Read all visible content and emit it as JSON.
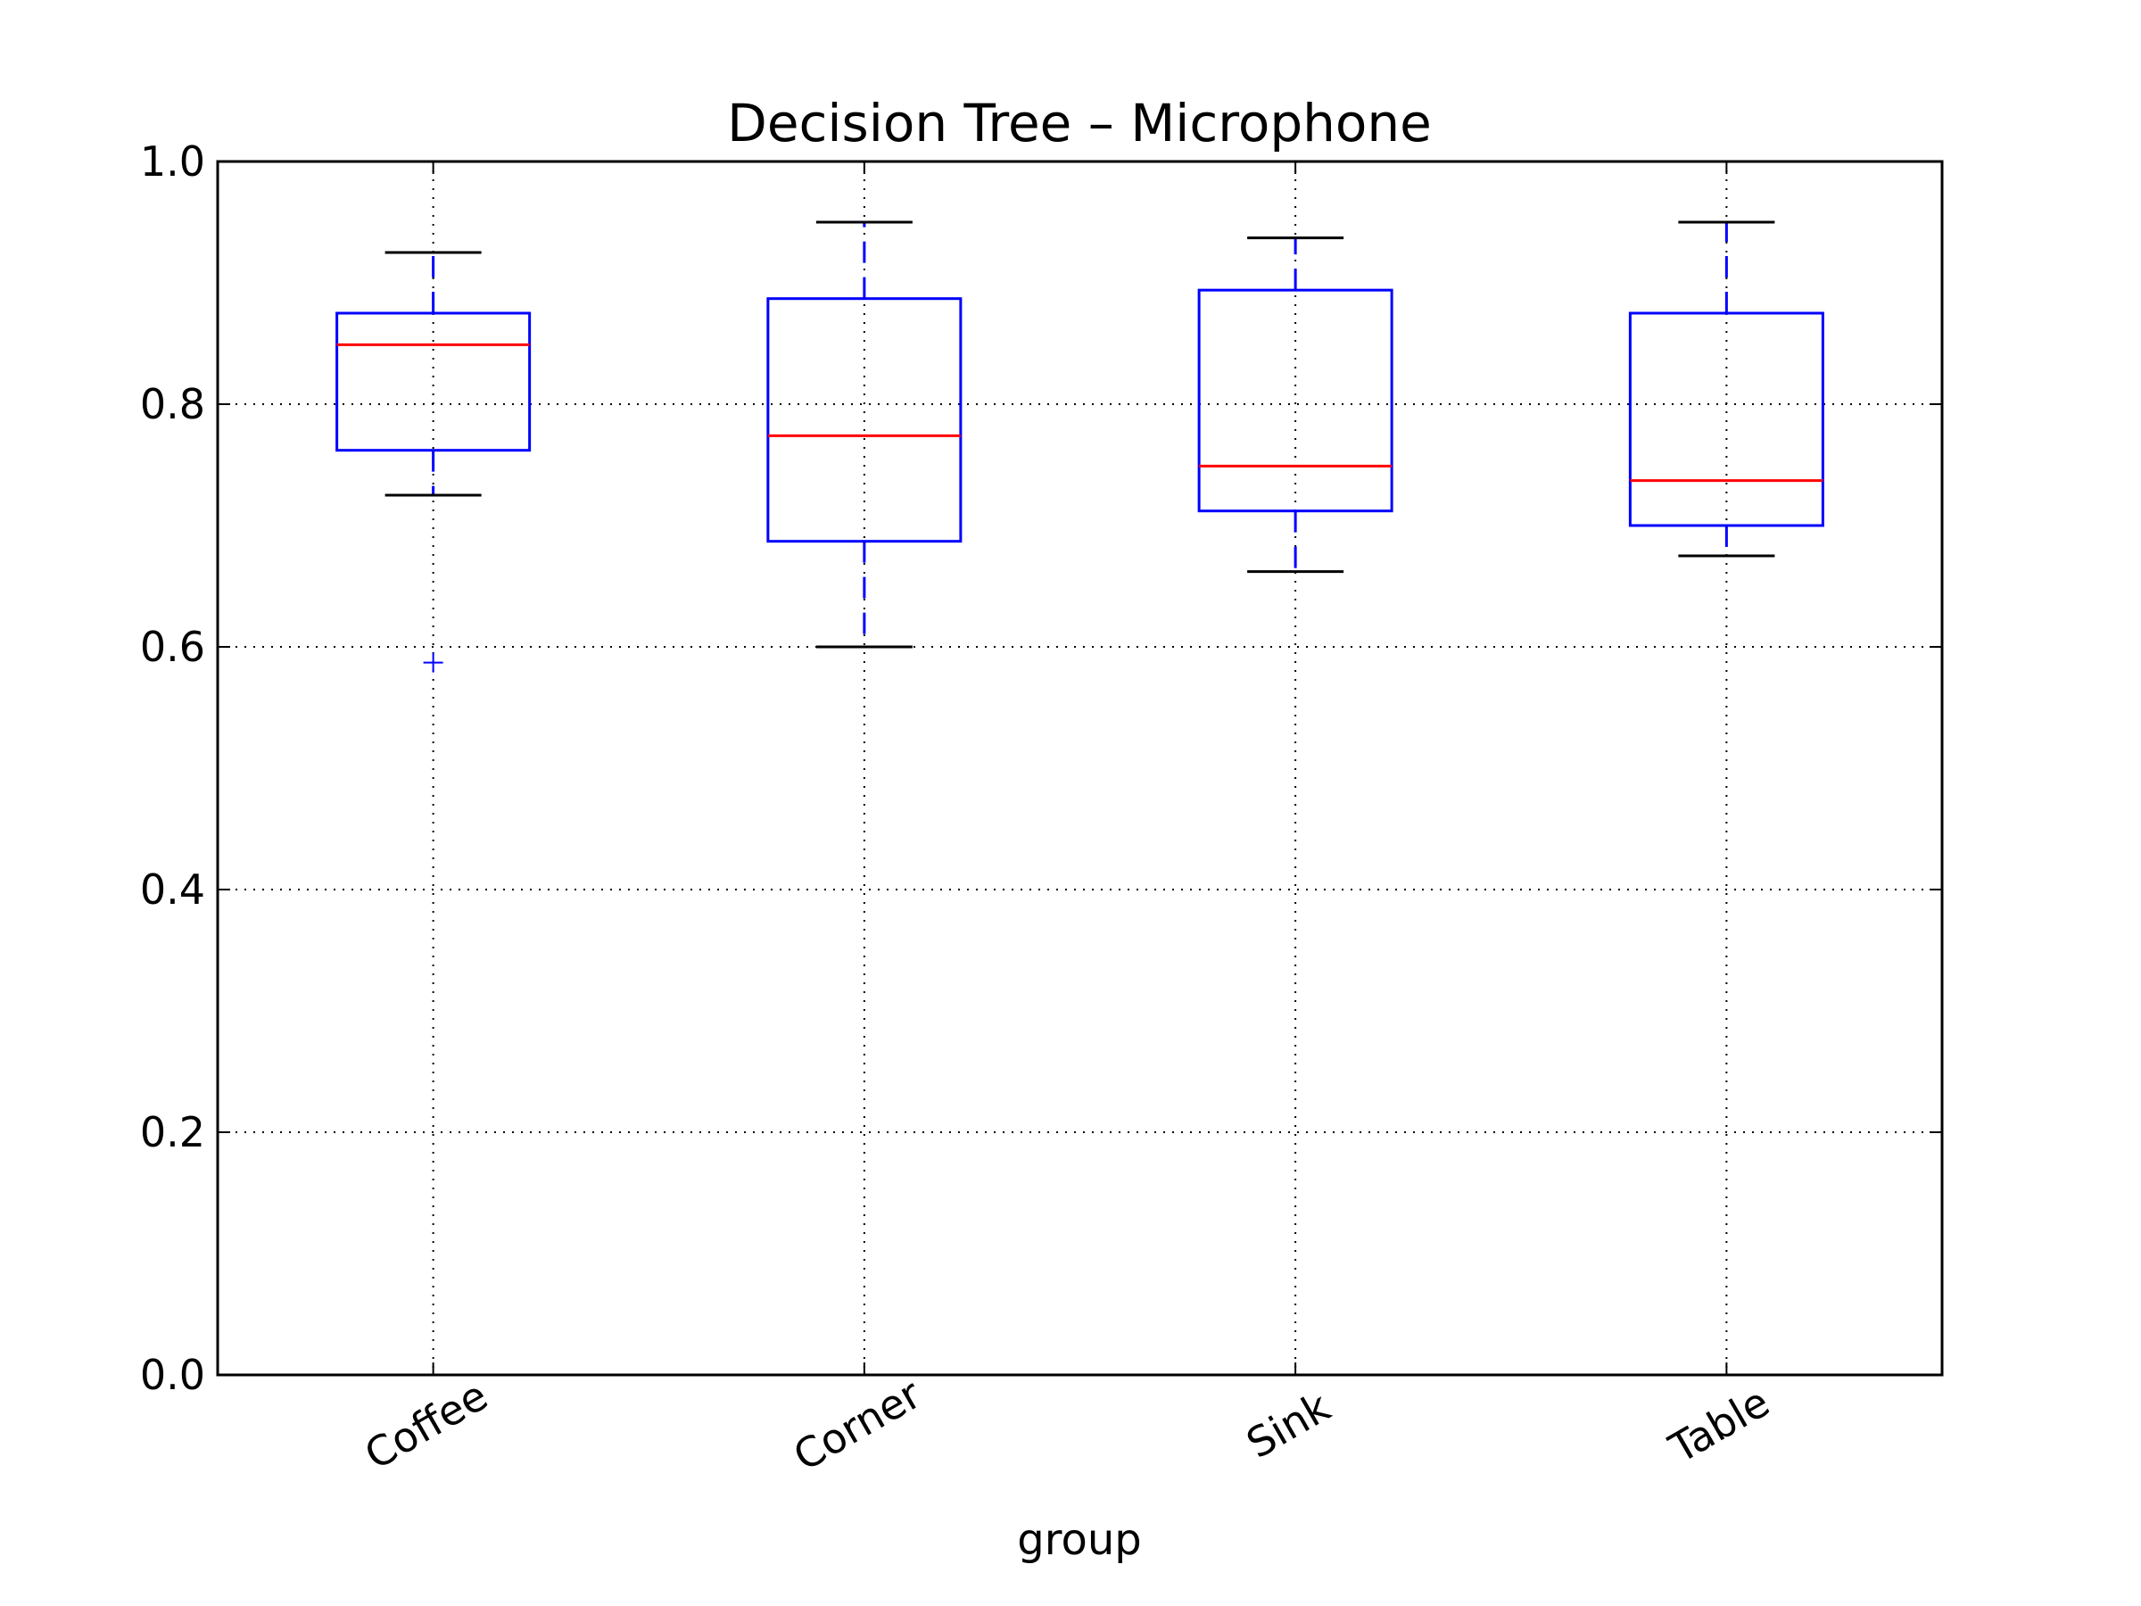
{
  "chart_data": {
    "type": "box",
    "title": "Decision Tree – Microphone",
    "xlabel": "group",
    "ylabel": "",
    "ylim": [
      0.0,
      1.0
    ],
    "yticks": [
      "0.0",
      "0.2",
      "0.4",
      "0.6",
      "0.8",
      "1.0"
    ],
    "grid": true,
    "categories": [
      "Coffee",
      "Corner",
      "Sink",
      "Table"
    ],
    "boxes": [
      {
        "whisker_low": 0.725,
        "q1": 0.762,
        "median": 0.849,
        "q3": 0.875,
        "whisker_high": 0.925,
        "outliers": [
          0.587
        ]
      },
      {
        "whisker_low": 0.6,
        "q1": 0.687,
        "median": 0.774,
        "q3": 0.887,
        "whisker_high": 0.95,
        "outliers": []
      },
      {
        "whisker_low": 0.662,
        "q1": 0.712,
        "median": 0.749,
        "q3": 0.894,
        "whisker_high": 0.937,
        "outliers": []
      },
      {
        "whisker_low": 0.675,
        "q1": 0.7,
        "median": 0.737,
        "q3": 0.875,
        "whisker_high": 0.95,
        "outliers": []
      }
    ],
    "colors": {
      "box": "#0000ff",
      "median": "#ff0000",
      "cap": "#000000",
      "grid": "#000000"
    }
  }
}
